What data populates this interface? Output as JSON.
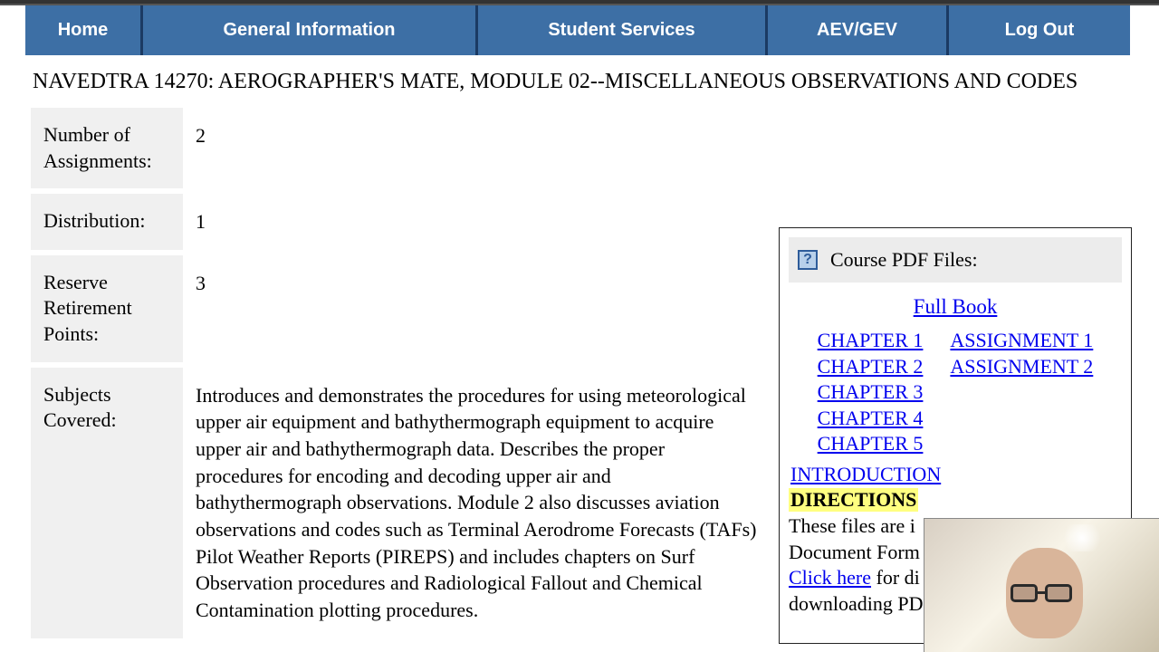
{
  "nav": {
    "home": "Home",
    "general": "General Information",
    "student": "Student Services",
    "aev": "AEV/GEV",
    "logout": "Log Out"
  },
  "course_title": "NAVEDTRA 14270: AEROGRAPHER'S MATE, MODULE 02--MISCELLANEOUS OBSERVATIONS AND CODES",
  "info_rows": {
    "assignments_label": "Number of Assignments:",
    "assignments_value": "2",
    "distribution_label": "Distribution:",
    "distribution_value": "1",
    "reserve_label": "Reserve Retirement Points:",
    "reserve_value": "3",
    "subjects_label": "Subjects Covered:",
    "subjects_value": "Introduces and demonstrates the procedures for using meteorological upper air equipment and bathythermograph equipment to acquire upper air and bathythermograph data. Describes the proper procedures for encoding and decoding upper air and bathythermograph observations. Module 2 also discusses aviation observations and codes such as Terminal Aerodrome Forecasts (TAFs) Pilot Weather Reports (PIREPS) and includes chapters on Surf Observation procedures and Radiological Fallout and Chemical Contamination plotting procedures."
  },
  "pdf_panel": {
    "header": "Course PDF Files:",
    "full_book": "Full Book",
    "chapters": {
      "c1": "CHAPTER 1",
      "c2": "CHAPTER 2",
      "c3": "CHAPTER 3",
      "c4": "CHAPTER 4",
      "c5": "CHAPTER 5"
    },
    "assignments": {
      "a1": "ASSIGNMENT 1",
      "a2": "ASSIGNMENT 2"
    },
    "introduction": "INTRODUCTION",
    "directions_label": "DIRECTIONS",
    "body_part1": "These files are i",
    "body_part2": "Document Form",
    "click_here": "Click here",
    "body_part3": " for di",
    "body_part4": "downloading PD"
  },
  "colors": {
    "nav_bg": "#3d6fa5",
    "nav_divider": "#1b3a63",
    "label_bg": "#f0f0f0",
    "link": "#0000ee",
    "highlight": "#ffff80"
  }
}
